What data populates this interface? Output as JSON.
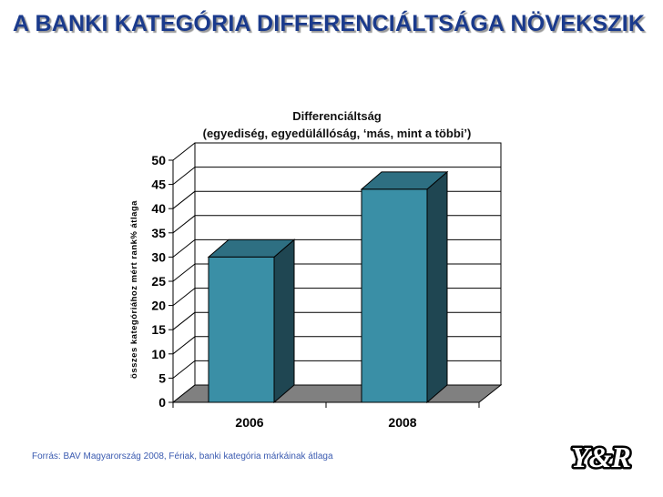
{
  "slide": {
    "title": "A BANKI KATEGÓRIA DIFFERENCIÁLTSÁGA NÖVEKSZIK",
    "source": "Forrás: BAV Magyarország 2008, Fériak, banki kategória márkáinak átlaga",
    "logo_text": "Y&R"
  },
  "chart_data": {
    "type": "bar",
    "title": "Differenciáltság",
    "subtitle": "(egyediség, egyedülállóság, ‘más, mint a  többi’)",
    "ylabel": "összes kategóriához mért rank% átlaga",
    "xlabel": "",
    "categories": [
      "2006",
      "2008"
    ],
    "values": [
      30,
      44
    ],
    "ylim": [
      0,
      50
    ],
    "yticks": [
      0,
      5,
      10,
      15,
      20,
      25,
      30,
      35,
      40,
      45,
      50
    ],
    "grid": true,
    "colors": {
      "bar_front": "#3a8fa6",
      "bar_top": "#2e6f82",
      "bar_side": "#1f4652",
      "floor": "#808080"
    }
  }
}
